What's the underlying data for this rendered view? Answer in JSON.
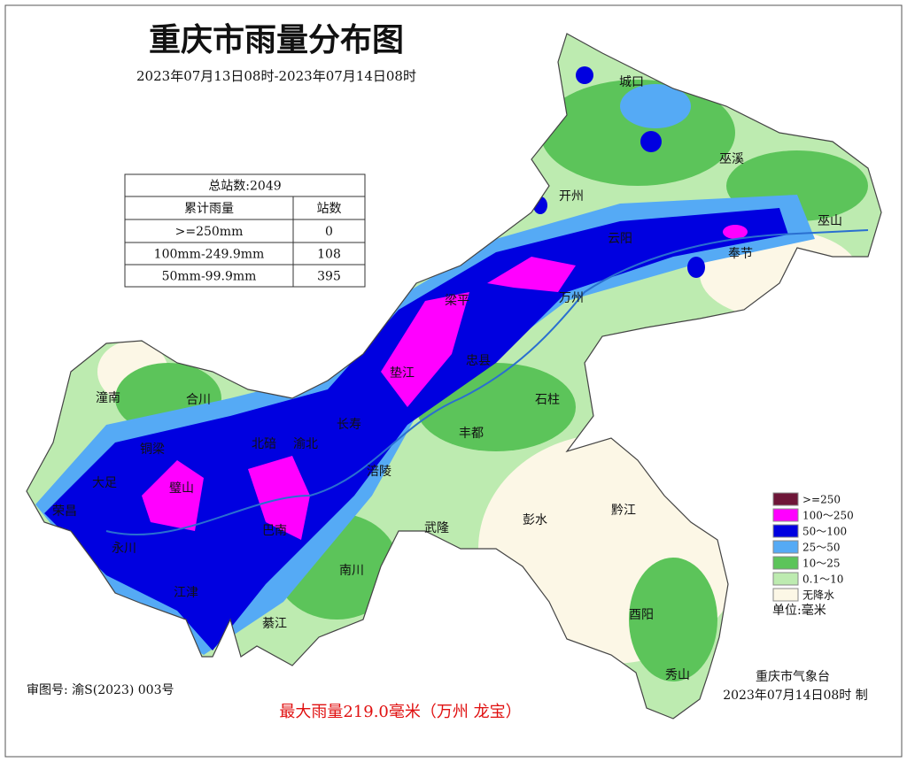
{
  "header": {
    "title": "重庆市雨量分布图",
    "period": "2023年07月13日08时-2023年07月14日08时"
  },
  "table": {
    "title": "总站数:2049",
    "columns": [
      "累计雨量",
      "站数"
    ],
    "rows": [
      [
        ">=250mm",
        "0"
      ],
      [
        "100mm-249.9mm",
        "108"
      ],
      [
        "50mm-99.9mm",
        "395"
      ]
    ]
  },
  "legend": {
    "items": [
      {
        "label": ">=250",
        "color": "#6e1638"
      },
      {
        "label": "100～250",
        "color": "#ff00ff"
      },
      {
        "label": "50～100",
        "color": "#0000e0"
      },
      {
        "label": "25～50",
        "color": "#55aaf5"
      },
      {
        "label": "10～25",
        "color": "#5cc45a"
      },
      {
        "label": "0.1～10",
        "color": "#bdebb0"
      },
      {
        "label": "无降水",
        "color": "#fcf7e6"
      }
    ],
    "unit": "单位:毫米"
  },
  "places": [
    "城口",
    "巫溪",
    "开州",
    "巫山",
    "云阳",
    "奉节",
    "梁平",
    "万州",
    "忠县",
    "垫江",
    "石柱",
    "长寿",
    "丰都",
    "涪陵",
    "潼南",
    "合川",
    "铜梁",
    "北碚",
    "渝北",
    "大足",
    "璧山",
    "荣昌",
    "永川",
    "巴南",
    "江津",
    "綦江",
    "南川",
    "武隆",
    "彭水",
    "黔江",
    "酉阳",
    "秀山"
  ],
  "footer": {
    "approval": "审图号: 渝S(2023) 003号",
    "max_rain": "最大雨量219.0毫米（万州 龙宝）",
    "issuer": "重庆市气象台",
    "issued": "2023年07月14日08时 制"
  }
}
